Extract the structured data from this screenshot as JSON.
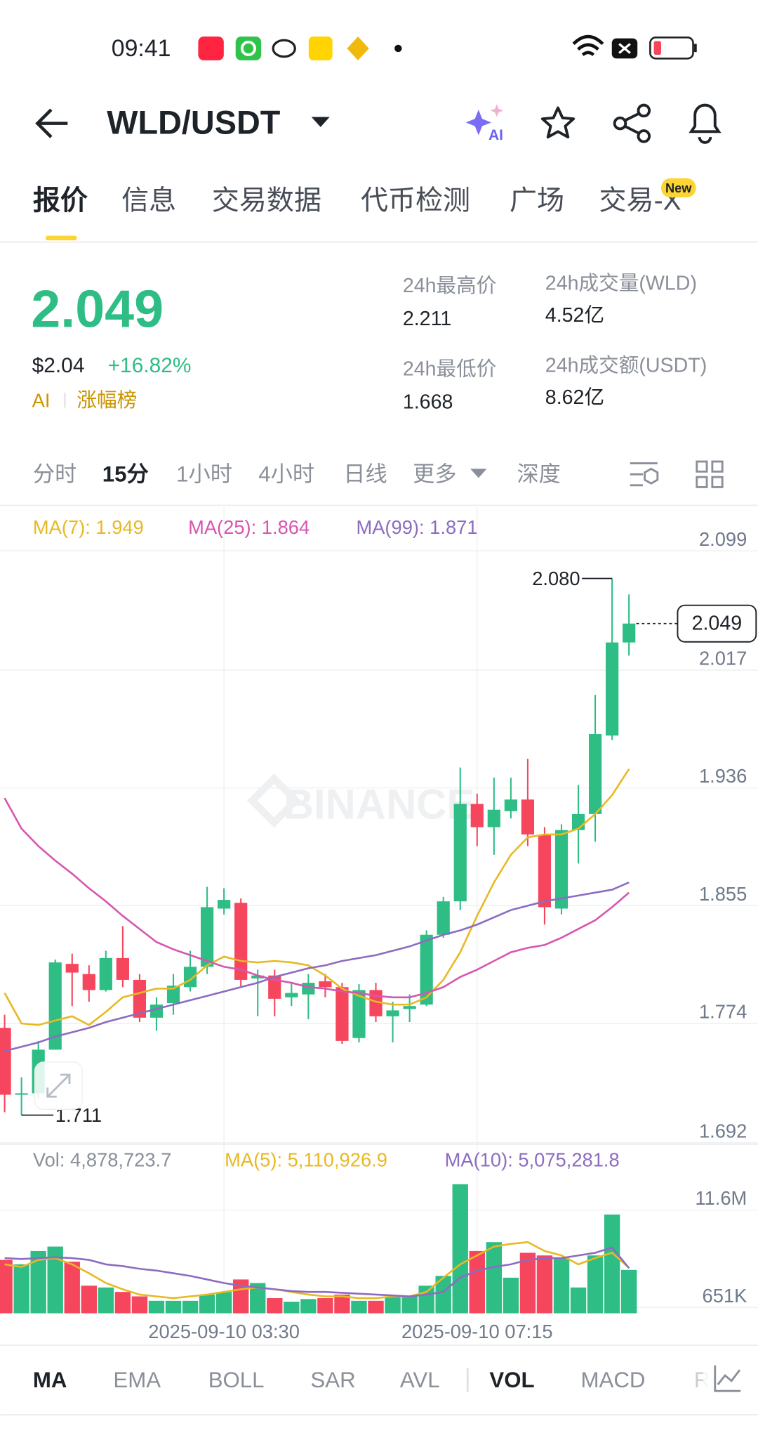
{
  "status_bar": {
    "time": "09:41"
  },
  "header": {
    "pair": "WLD/USDT",
    "ai": "AI"
  },
  "tabs": [
    "报价",
    "信息",
    "交易数据",
    "代币检测",
    "广场",
    "交易-X"
  ],
  "tab_badge": "New",
  "price": {
    "last": "2.049",
    "usd": "$2.04",
    "change": "+16.82%",
    "tag1": "AI",
    "tag2": "涨幅榜"
  },
  "stats": [
    {
      "label": "24h最高价",
      "value": "2.211"
    },
    {
      "label": "24h成交量(WLD)",
      "value": "4.52亿"
    },
    {
      "label": "24h最低价",
      "value": "1.668"
    },
    {
      "label": "24h成交额(USDT)",
      "value": "8.62亿"
    }
  ],
  "intervals": [
    "分时",
    "15分",
    "1小时",
    "4小时",
    "日线",
    "更多",
    "深度"
  ],
  "chart_data": [
    {
      "type": "candlestick",
      "watermark": "BINANCE",
      "open": [
        1.771,
        1.725,
        1.726,
        1.756,
        1.815,
        1.808,
        1.797,
        1.819,
        1.804,
        1.778,
        1.788,
        1.799,
        1.813,
        1.853,
        1.857,
        1.805,
        1.807,
        1.792,
        1.794,
        1.803,
        1.799,
        1.764,
        1.797,
        1.779,
        1.784,
        1.787,
        1.835,
        1.858,
        1.925,
        1.909,
        1.92,
        1.928,
        1.904,
        1.853,
        1.907,
        1.918,
        1.972,
        2.036
      ],
      "high": [
        1.78,
        1.737,
        1.762,
        1.818,
        1.822,
        1.814,
        1.824,
        1.841,
        1.808,
        1.792,
        1.808,
        1.824,
        1.868,
        1.867,
        1.86,
        1.811,
        1.811,
        1.802,
        1.808,
        1.808,
        1.802,
        1.801,
        1.802,
        1.789,
        1.794,
        1.838,
        1.861,
        1.95,
        1.932,
        1.943,
        1.943,
        1.956,
        1.909,
        1.911,
        1.938,
        2.0,
        2.08,
        2.069
      ],
      "low": [
        1.713,
        1.711,
        1.723,
        1.756,
        1.786,
        1.789,
        1.796,
        1.799,
        1.775,
        1.769,
        1.78,
        1.796,
        1.808,
        1.849,
        1.799,
        1.779,
        1.779,
        1.786,
        1.777,
        1.792,
        1.76,
        1.761,
        1.775,
        1.761,
        1.775,
        1.786,
        1.833,
        1.852,
        1.896,
        1.89,
        1.915,
        1.896,
        1.842,
        1.849,
        1.884,
        1.899,
        1.969,
        2.027
      ],
      "close": [
        1.725,
        1.726,
        1.756,
        1.816,
        1.809,
        1.797,
        1.819,
        1.804,
        1.778,
        1.787,
        1.8,
        1.813,
        1.854,
        1.859,
        1.804,
        1.807,
        1.791,
        1.795,
        1.802,
        1.799,
        1.762,
        1.797,
        1.779,
        1.783,
        1.786,
        1.835,
        1.858,
        1.925,
        1.909,
        1.921,
        1.928,
        1.904,
        1.854,
        1.907,
        1.918,
        1.973,
        2.036,
        2.049
      ],
      "up_color": "#2ebd85",
      "down_color": "#f6465d",
      "series": [
        {
          "name": "MA(7): 1.949",
          "color": "#e8b923",
          "values": [
            1.795,
            1.774,
            1.773,
            1.776,
            1.779,
            1.773,
            1.782,
            1.792,
            1.795,
            1.798,
            1.798,
            1.804,
            1.814,
            1.82,
            1.817,
            1.816,
            1.817,
            1.816,
            1.814,
            1.807,
            1.798,
            1.793,
            1.789,
            1.787,
            1.787,
            1.792,
            1.804,
            1.823,
            1.848,
            1.871,
            1.89,
            1.902,
            1.904,
            1.904,
            1.908,
            1.918,
            1.931,
            1.949
          ]
        },
        {
          "name": "MA(25): 1.864",
          "color": "#d656b0",
          "values": [
            1.929,
            1.908,
            1.896,
            1.886,
            1.877,
            1.867,
            1.858,
            1.848,
            1.839,
            1.83,
            1.825,
            1.821,
            1.817,
            1.813,
            1.811,
            1.807,
            1.804,
            1.802,
            1.799,
            1.798,
            1.796,
            1.795,
            1.793,
            1.792,
            1.792,
            1.795,
            1.799,
            1.806,
            1.811,
            1.817,
            1.823,
            1.826,
            1.828,
            1.833,
            1.839,
            1.845,
            1.854,
            1.864
          ]
        },
        {
          "name": "MA(99): 1.871",
          "color": "#8c6cc0",
          "values": [
            1.755,
            1.758,
            1.761,
            1.765,
            1.768,
            1.771,
            1.775,
            1.778,
            1.781,
            1.784,
            1.787,
            1.79,
            1.793,
            1.796,
            1.799,
            1.802,
            1.806,
            1.809,
            1.812,
            1.814,
            1.817,
            1.819,
            1.821,
            1.824,
            1.827,
            1.831,
            1.835,
            1.838,
            1.842,
            1.847,
            1.852,
            1.855,
            1.858,
            1.86,
            1.862,
            1.864,
            1.866,
            1.871
          ]
        }
      ],
      "high_label": {
        "value": 2.08,
        "label": "2.080"
      },
      "low_label": 1.711,
      "last_price": 2.049,
      "ylim": [
        1.691,
        2.129
      ],
      "yticks": [
        2.099,
        2.017,
        1.936,
        1.855,
        1.774,
        1.692
      ],
      "grid": true
    },
    {
      "type": "bar",
      "volume_label": "Vol: 4,878,723.7",
      "categories": [
        null,
        null,
        null,
        null,
        null,
        null,
        null,
        null,
        null,
        null,
        null,
        null,
        null,
        "2025-09-10 03:30",
        null,
        null,
        null,
        null,
        null,
        null,
        null,
        null,
        null,
        null,
        null,
        null,
        null,
        null,
        "2025-09-10 07:15",
        null,
        null,
        null,
        null,
        null,
        null,
        null,
        null,
        null
      ],
      "values": [
        6000000,
        5500000,
        7000000,
        7500000,
        5800000,
        3100000,
        2900000,
        2400000,
        1900000,
        1400000,
        1400000,
        1400000,
        2100000,
        2400000,
        3800000,
        3400000,
        1700000,
        1300000,
        1600000,
        1700000,
        2100000,
        1400000,
        1400000,
        1900000,
        1900000,
        3100000,
        4200000,
        14500000,
        7000000,
        8000000,
        4000000,
        6800000,
        6500000,
        6200000,
        2900000,
        6500000,
        11100000,
        4878723.7
      ],
      "series": [
        {
          "name": "MA(5): 5,110,926.9",
          "color": "#e8b923",
          "values": [
            5500000,
            5200000,
            6000000,
            6200000,
            5500000,
            4500000,
            3400000,
            2700000,
            2100000,
            1900000,
            1700000,
            1900000,
            2100000,
            2400000,
            2700000,
            2900000,
            2700000,
            2400000,
            2100000,
            1900000,
            1900000,
            1700000,
            1700000,
            1900000,
            1900000,
            2400000,
            4000000,
            5500000,
            6500000,
            7500000,
            7800000,
            8000000,
            7000000,
            6500000,
            5500000,
            6200000,
            6800000,
            5110926.9
          ]
        },
        {
          "name": "MA(10): 5,075,281.8",
          "color": "#8c6cc0",
          "values": [
            6200000,
            6100000,
            6200000,
            6300000,
            6200000,
            6000000,
            5500000,
            5300000,
            5000000,
            4800000,
            4500000,
            4200000,
            3800000,
            3400000,
            3100000,
            2900000,
            2700000,
            2500000,
            2400000,
            2400000,
            2300000,
            2200000,
            2100000,
            2000000,
            1900000,
            2100000,
            2400000,
            4000000,
            4800000,
            5200000,
            5500000,
            6000000,
            6200000,
            6200000,
            6500000,
            6800000,
            7400000,
            5075281.8
          ]
        }
      ],
      "ylim": [
        0,
        15100000
      ],
      "yticks": [
        {
          "value": 11600000,
          "label": "11.6M"
        },
        {
          "value": 651000,
          "label": "651K"
        }
      ],
      "grid": true
    }
  ],
  "indicators": [
    "MA",
    "EMA",
    "BOLL",
    "SAR",
    "AVL",
    "VOL",
    "MACD",
    "R"
  ]
}
